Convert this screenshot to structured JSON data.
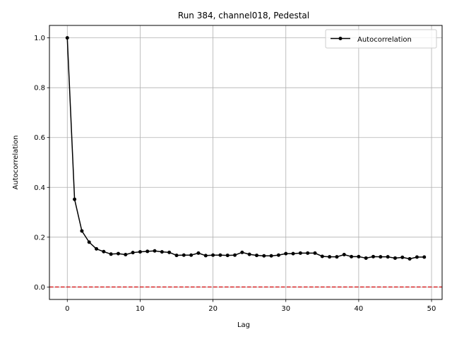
{
  "chart_data": {
    "type": "line",
    "title": "Run 384, channel018, Pedestal",
    "xlabel": "Lag",
    "ylabel": "Autocorrelation",
    "xlim": [
      -2.45,
      51.45
    ],
    "ylim": [
      -0.05,
      1.05
    ],
    "xticks": [
      0,
      10,
      20,
      30,
      40,
      50
    ],
    "yticks": [
      0.0,
      0.2,
      0.4,
      0.6,
      0.8,
      1.0
    ],
    "xtick_labels": [
      "0",
      "10",
      "20",
      "30",
      "40",
      "50"
    ],
    "ytick_labels": [
      "0.0",
      "0.2",
      "0.4",
      "0.6",
      "0.8",
      "1.0"
    ],
    "grid": true,
    "legend_position": "top-right",
    "reference_line": {
      "y": 0.0,
      "color": "#d62728",
      "style": "dashed"
    },
    "series": [
      {
        "name": "Autocorrelation",
        "color": "#000000",
        "marker": "circle",
        "x": [
          0,
          1,
          2,
          3,
          4,
          5,
          6,
          7,
          8,
          9,
          10,
          11,
          12,
          13,
          14,
          15,
          16,
          17,
          18,
          19,
          20,
          21,
          22,
          23,
          24,
          25,
          26,
          27,
          28,
          29,
          30,
          31,
          32,
          33,
          34,
          35,
          36,
          37,
          38,
          39,
          40,
          41,
          42,
          43,
          44,
          45,
          46,
          47,
          48,
          49
        ],
        "values": [
          1.0,
          0.352,
          0.225,
          0.18,
          0.153,
          0.142,
          0.132,
          0.134,
          0.13,
          0.138,
          0.141,
          0.143,
          0.145,
          0.141,
          0.139,
          0.127,
          0.128,
          0.128,
          0.136,
          0.126,
          0.128,
          0.128,
          0.127,
          0.128,
          0.139,
          0.131,
          0.127,
          0.125,
          0.125,
          0.128,
          0.134,
          0.134,
          0.136,
          0.136,
          0.136,
          0.123,
          0.121,
          0.121,
          0.13,
          0.122,
          0.122,
          0.116,
          0.122,
          0.121,
          0.121,
          0.116,
          0.119,
          0.113,
          0.12,
          0.12
        ]
      }
    ]
  }
}
